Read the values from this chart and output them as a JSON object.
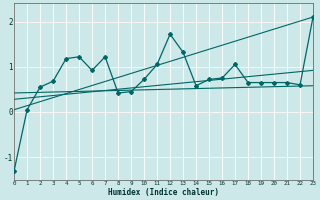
{
  "xlabel": "Humidex (Indice chaleur)",
  "ylabel": "",
  "bg_color": "#cce8e8",
  "grid_color": "#b8d8d8",
  "line_color": "#006666",
  "xlim": [
    0,
    23
  ],
  "ylim": [
    -1.5,
    2.4
  ],
  "xticks": [
    0,
    1,
    2,
    3,
    4,
    5,
    6,
    7,
    8,
    9,
    10,
    11,
    12,
    13,
    14,
    15,
    16,
    17,
    18,
    19,
    20,
    21,
    22,
    23
  ],
  "yticks": [
    -1,
    0,
    1,
    2
  ],
  "series_main": {
    "x": [
      0,
      1,
      2,
      3,
      4,
      5,
      6,
      7,
      8,
      9,
      10,
      11,
      12,
      13,
      14,
      15,
      16,
      17,
      18,
      19,
      20,
      21,
      22,
      23
    ],
    "y": [
      -1.3,
      0.05,
      0.55,
      0.68,
      1.18,
      1.22,
      0.92,
      1.22,
      0.42,
      0.45,
      0.72,
      1.05,
      1.72,
      1.32,
      0.58,
      0.72,
      0.75,
      1.05,
      0.65,
      0.65,
      0.65,
      0.65,
      0.6,
      2.1
    ]
  },
  "series_lines": [
    {
      "x": [
        0,
        23
      ],
      "y": [
        0.28,
        0.92
      ]
    },
    {
      "x": [
        0,
        23
      ],
      "y": [
        0.42,
        0.58
      ]
    },
    {
      "x": [
        0,
        23
      ],
      "y": [
        0.05,
        2.1
      ]
    }
  ]
}
